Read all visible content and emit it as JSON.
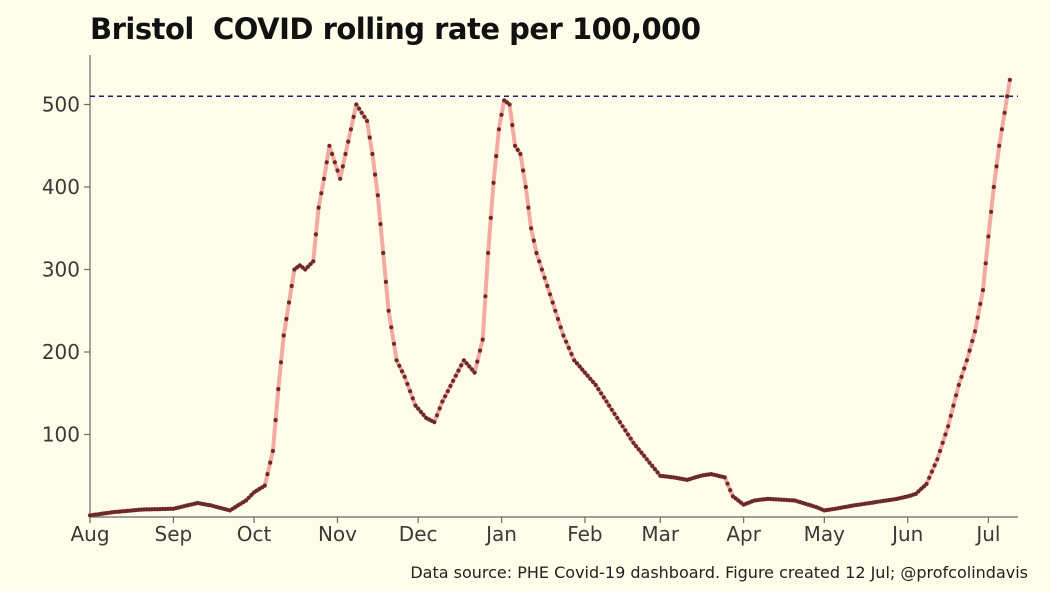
{
  "chart_data": {
    "type": "line",
    "title": "Bristol  COVID rolling rate per 100,000",
    "caption": "Data source: PHE Covid-19 dashboard. Figure created 12 Jul; @profcolindavis",
    "x_tick_labels": [
      "Aug",
      "Sep",
      "Oct",
      "Nov",
      "Dec",
      "Jan",
      "Feb",
      "Mar",
      "Apr",
      "May",
      "Jun",
      "Jul"
    ],
    "y_ticks": [
      100,
      200,
      300,
      400,
      500
    ],
    "ylim": [
      0,
      560
    ],
    "reference_line": 510,
    "grid": false,
    "colors": {
      "line": "#f4aaa0",
      "points": "#6b2a2a",
      "reference": "#1a1a7a"
    },
    "series": [
      {
        "x": [
          "2020-08-01",
          "2020-08-10",
          "2020-08-20",
          "2020-09-01",
          "2020-09-10",
          "2020-09-15",
          "2020-09-22",
          "2020-09-28",
          "2020-10-01",
          "2020-10-05",
          "2020-10-08",
          "2020-10-10",
          "2020-10-12",
          "2020-10-14",
          "2020-10-16",
          "2020-10-18",
          "2020-10-20",
          "2020-10-23",
          "2020-10-25",
          "2020-10-27",
          "2020-10-29",
          "2020-10-31",
          "2020-11-02",
          "2020-11-04",
          "2020-11-06",
          "2020-11-08",
          "2020-11-10",
          "2020-11-12",
          "2020-11-14",
          "2020-11-16",
          "2020-11-18",
          "2020-11-20",
          "2020-11-23",
          "2020-11-26",
          "2020-11-30",
          "2020-12-04",
          "2020-12-07",
          "2020-12-10",
          "2020-12-14",
          "2020-12-18",
          "2020-12-22",
          "2020-12-25",
          "2020-12-27",
          "2020-12-29",
          "2020-12-31",
          "2021-01-02",
          "2021-01-04",
          "2021-01-06",
          "2021-01-08",
          "2021-01-10",
          "2021-01-12",
          "2021-01-14",
          "2021-01-17",
          "2021-01-20",
          "2021-01-24",
          "2021-01-28",
          "2021-02-01",
          "2021-02-05",
          "2021-02-09",
          "2021-02-14",
          "2021-02-19",
          "2021-02-24",
          "2021-03-01",
          "2021-03-06",
          "2021-03-11",
          "2021-03-16",
          "2021-03-20",
          "2021-03-25",
          "2021-03-28",
          "2021-04-01",
          "2021-04-05",
          "2021-04-10",
          "2021-04-20",
          "2021-04-28",
          "2021-05-01",
          "2021-05-05",
          "2021-05-12",
          "2021-05-20",
          "2021-05-28",
          "2021-06-01",
          "2021-06-04",
          "2021-06-08",
          "2021-06-12",
          "2021-06-16",
          "2021-06-20",
          "2021-06-23",
          "2021-06-26",
          "2021-06-29",
          "2021-07-01",
          "2021-07-03",
          "2021-07-05",
          "2021-07-07",
          "2021-07-09"
        ],
        "y": [
          2,
          6,
          9,
          10,
          17,
          14,
          8,
          20,
          30,
          38,
          80,
          155,
          220,
          260,
          300,
          305,
          300,
          310,
          375,
          410,
          450,
          430,
          410,
          440,
          470,
          500,
          490,
          480,
          440,
          390,
          320,
          250,
          190,
          170,
          135,
          120,
          115,
          140,
          165,
          190,
          175,
          215,
          320,
          405,
          470,
          505,
          500,
          450,
          440,
          400,
          350,
          320,
          290,
          260,
          220,
          190,
          175,
          160,
          140,
          115,
          90,
          70,
          50,
          48,
          45,
          50,
          52,
          48,
          25,
          15,
          20,
          22,
          20,
          12,
          8,
          10,
          14,
          18,
          22,
          25,
          28,
          40,
          70,
          110,
          160,
          190,
          225,
          275,
          340,
          400,
          450,
          490,
          530
        ]
      }
    ]
  }
}
